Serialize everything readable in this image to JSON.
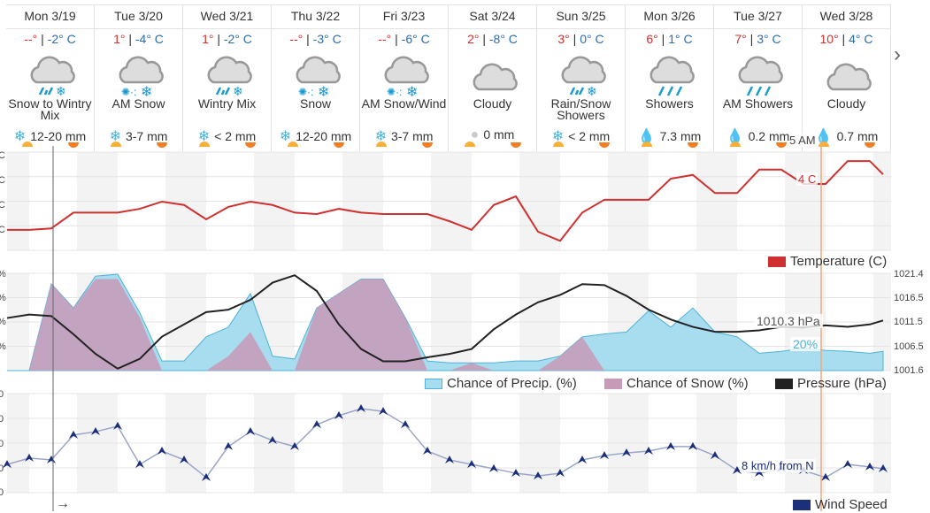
{
  "days": [
    {
      "date": "Mon 3/19",
      "hi": "--°",
      "lo": "-2° C",
      "icon": "wintry-mix",
      "cond": "Snow to Wintry Mix",
      "ptype": "snow",
      "amount": "12-20 mm"
    },
    {
      "date": "Tue 3/20",
      "hi": "1°",
      "lo": "-4° C",
      "icon": "snow",
      "cond": "AM Snow",
      "ptype": "snow",
      "amount": "3-7 mm"
    },
    {
      "date": "Wed 3/21",
      "hi": "1°",
      "lo": "-2° C",
      "icon": "wintry-mix",
      "cond": "Wintry Mix",
      "ptype": "snow",
      "amount": "< 2 mm"
    },
    {
      "date": "Thu 3/22",
      "hi": "--°",
      "lo": "-3° C",
      "icon": "snow",
      "cond": "Snow",
      "ptype": "snow",
      "amount": "12-20 mm"
    },
    {
      "date": "Fri 3/23",
      "hi": "--°",
      "lo": "-6° C",
      "icon": "snow",
      "cond": "AM Snow/Wind",
      "ptype": "snow",
      "amount": "3-7 mm"
    },
    {
      "date": "Sat 3/24",
      "hi": "2°",
      "lo": "-8° C",
      "icon": "cloudy",
      "cond": "Cloudy",
      "ptype": "none",
      "amount": "0 mm"
    },
    {
      "date": "Sun 3/25",
      "hi": "3°",
      "lo": "0° C",
      "icon": "wintry-mix",
      "cond": "Rain/Snow Showers",
      "ptype": "snow",
      "amount": "< 2 mm"
    },
    {
      "date": "Mon 3/26",
      "hi": "6°",
      "lo": "1° C",
      "icon": "showers",
      "cond": "Showers",
      "ptype": "rain",
      "amount": "7.3 mm"
    },
    {
      "date": "Tue 3/27",
      "hi": "7°",
      "lo": "3° C",
      "icon": "showers",
      "cond": "AM Showers",
      "ptype": "rain",
      "amount": "0.2 mm"
    },
    {
      "date": "Wed 3/28",
      "hi": "10°",
      "lo": "4° C",
      "icon": "cloudy",
      "cond": "Cloudy",
      "ptype": "rain",
      "amount": "0.7 mm"
    }
  ],
  "sep": " | ",
  "nav": {
    "next_icon": "chevron-right-icon"
  },
  "now": {
    "time_label": "5 AM",
    "temp_label": "4 C",
    "pressure_label": "1010.3 hPa",
    "precip_label": "20%",
    "wind_label": "8 km/h from N"
  },
  "legends": {
    "temperature": "Temperature (C)",
    "precip": "Chance of Precip. (%)",
    "snow": "Chance of Snow (%)",
    "pressure": "Pressure (hPa)",
    "wind": "Wind Speed"
  },
  "axes": {
    "pressure_ticks": [
      "1021.4",
      "1016.5",
      "1011.5",
      "1006.5",
      "1001.6"
    ],
    "temp_unit": "C",
    "pct_unit": "%",
    "wind_tick": "0",
    "arrow": "→"
  },
  "colors": {
    "temp": "#d0302f",
    "precip": "#a8dcef",
    "precip_line": "#4fb3d9",
    "snow": "#c79ab8",
    "pressure": "#222222",
    "wind": "#1b2f7a",
    "now_line": "#f2a878"
  },
  "chart_data": {
    "type": "line",
    "hours_step": 6,
    "temperature_c": [
      -4.6,
      -4.6,
      -4.3,
      -1,
      -1,
      -1,
      -0.2,
      1.3,
      0.6,
      -2.4,
      0.2,
      1.3,
      0.6,
      -1,
      -1.3,
      -0.2,
      -1,
      -1.3,
      -1.3,
      -1.3,
      -2.8,
      -4.6,
      0.6,
      2.4,
      -5,
      -6.9,
      -1,
      1.7,
      1.7,
      1.7,
      6.1,
      6.9,
      3.1,
      3.1,
      8,
      8,
      5,
      5,
      9.8,
      9.8,
      7
    ],
    "precip_pct": [
      0,
      0,
      90,
      65,
      98,
      100,
      60,
      10,
      10,
      35,
      45,
      80,
      15,
      12,
      65,
      80,
      95,
      95,
      55,
      10,
      8,
      8,
      8,
      10,
      10,
      15,
      35,
      38,
      40,
      62,
      45,
      65,
      40,
      35,
      18,
      20,
      23,
      21,
      20,
      18,
      20
    ],
    "snow_pct": [
      0,
      0,
      90,
      65,
      95,
      95,
      55,
      0,
      0,
      0,
      15,
      40,
      0,
      0,
      65,
      80,
      95,
      95,
      55,
      0,
      0,
      8,
      0,
      0,
      0,
      15,
      35,
      0,
      0,
      0,
      0,
      0,
      0,
      0,
      0,
      0,
      0,
      0,
      0,
      0,
      0
    ],
    "pressure_hpa": [
      1012.3,
      1013,
      1012.7,
      1009,
      1005,
      1002,
      1004,
      1008.5,
      1011,
      1013.5,
      1014,
      1016,
      1019.5,
      1021,
      1017.8,
      1011,
      1006,
      1003.5,
      1003.5,
      1004.3,
      1005,
      1006,
      1010,
      1013,
      1015.5,
      1017,
      1019.2,
      1019,
      1016.8,
      1014,
      1012,
      1010.5,
      1009.5,
      1009.5,
      1009.8,
      1010.5,
      1010.4,
      1010.8,
      1010.5,
      1011,
      1011.8
    ],
    "wind_kmh": [
      9.3,
      11.4,
      10.8,
      19,
      20.1,
      21.9,
      9.3,
      13.7,
      10.8,
      5,
      15.2,
      20.1,
      17.2,
      15.2,
      22.4,
      25.4,
      27.7,
      26.8,
      22.4,
      13.7,
      10.8,
      9.3,
      7.9,
      6.4,
      5.5,
      6.4,
      10.8,
      12.2,
      13.1,
      13.7,
      15.2,
      15.2,
      12.2,
      7.3,
      6.4,
      7.9,
      7.3,
      5,
      9.3,
      8.5,
      7.9
    ],
    "pressure_range": [
      1001.6,
      1021.4
    ],
    "pct_range": [
      0,
      100
    ]
  }
}
